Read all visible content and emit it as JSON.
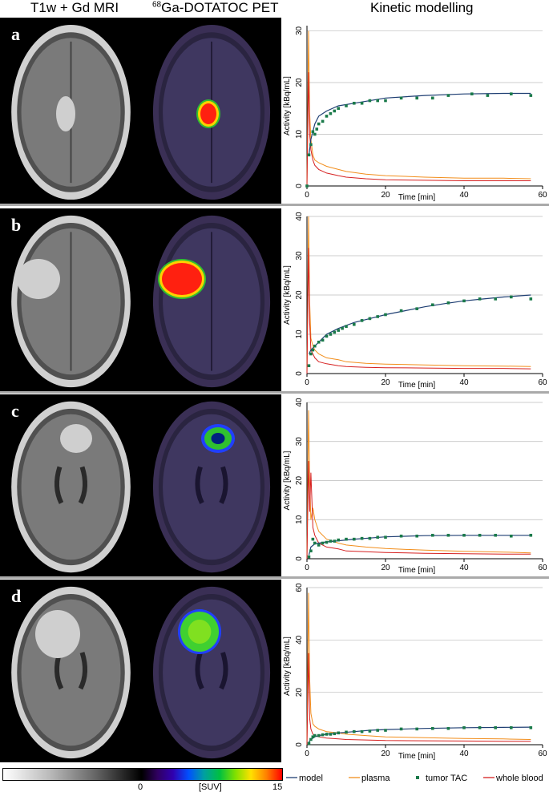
{
  "headers": {
    "col1": "T1w + Gd MRI",
    "col2_sup": "68",
    "col2": "Ga-DOTATOC PET",
    "col3": "Kinetic modelling"
  },
  "colors": {
    "model": "#1f3f73",
    "plasma": "#f28e1c",
    "tumor": "#1a7a4a",
    "blood": "#d62020"
  },
  "legend": {
    "scale_min": "0",
    "scale_unit": "[SUV]",
    "scale_max": "15",
    "model": "model",
    "plasma": "plasma",
    "tumor": "tumor TAC",
    "blood": "whole blood"
  },
  "chart_data": [
    {
      "panel": "a",
      "type": "line",
      "xlabel": "Time [min]",
      "ylabel": "Activity [kBq/mL]",
      "xlim": [
        0,
        60
      ],
      "ylim": [
        0,
        31
      ],
      "xticks": [
        0,
        20,
        40,
        60
      ],
      "yticks": [
        0,
        10,
        20,
        30
      ],
      "series": [
        {
          "name": "model",
          "x": [
            0.5,
            1,
            2,
            3,
            5,
            8,
            12,
            20,
            30,
            40,
            50,
            57
          ],
          "y": [
            6,
            9,
            12,
            13.5,
            14.5,
            15.5,
            16,
            17,
            17.5,
            17.8,
            17.9,
            17.9
          ]
        },
        {
          "name": "plasma",
          "x": [
            0,
            0.4,
            0.7,
            1,
            1.5,
            2,
            3,
            5,
            8,
            10,
            15,
            20,
            30,
            40,
            50,
            57
          ],
          "y": [
            0,
            30,
            14,
            9,
            6,
            5,
            4.5,
            3.8,
            3.2,
            2.8,
            2.3,
            2,
            1.7,
            1.5,
            1.5,
            1.4
          ]
        },
        {
          "name": "tumor TAC",
          "x": [
            0,
            0.5,
            1,
            1.5,
            2,
            2.5,
            3,
            4,
            5,
            6,
            7,
            8,
            10,
            12,
            14,
            16,
            18,
            20,
            24,
            28,
            32,
            36,
            42,
            46,
            52,
            57
          ],
          "y": [
            0,
            6,
            8,
            10.5,
            10,
            11,
            12,
            12.5,
            13.5,
            14,
            14.5,
            15,
            15.5,
            16,
            16,
            16.5,
            16.5,
            16.5,
            17,
            17,
            17,
            17.5,
            17.8,
            17.5,
            17.8,
            17.5
          ]
        },
        {
          "name": "whole blood",
          "x": [
            0,
            0.4,
            0.7,
            1,
            1.5,
            2,
            3,
            5,
            8,
            10,
            15,
            20,
            30,
            40,
            50,
            57
          ],
          "y": [
            0,
            22,
            10,
            7,
            5,
            4,
            3.2,
            2.5,
            2,
            1.7,
            1.4,
            1.2,
            1.1,
            1,
            1,
            1
          ]
        }
      ]
    },
    {
      "panel": "b",
      "type": "line",
      "xlabel": "Time [min]",
      "ylabel": "Activity [kBq/mL]",
      "xlim": [
        0,
        60
      ],
      "ylim": [
        0,
        40
      ],
      "xticks": [
        0,
        20,
        40,
        60
      ],
      "yticks": [
        0,
        10,
        20,
        30,
        40
      ],
      "series": [
        {
          "name": "model",
          "x": [
            0.5,
            1,
            2,
            3,
            5,
            8,
            12,
            16,
            20,
            25,
            30,
            35,
            40,
            45,
            50,
            57
          ],
          "y": [
            5,
            6,
            7,
            8,
            10,
            11.5,
            13,
            14,
            15,
            16,
            17,
            17.8,
            18.5,
            19,
            19.5,
            20
          ]
        },
        {
          "name": "plasma",
          "x": [
            0,
            0.4,
            0.7,
            1,
            1.5,
            2,
            3,
            5,
            8,
            10,
            15,
            20,
            30,
            40,
            50,
            57
          ],
          "y": [
            0,
            40,
            18,
            9,
            7,
            6,
            5,
            4,
            3.5,
            3,
            2.6,
            2.4,
            2.2,
            2,
            1.9,
            1.8
          ]
        },
        {
          "name": "tumor TAC",
          "x": [
            0.5,
            1,
            1.5,
            2,
            3,
            4,
            5,
            6,
            7,
            8,
            9,
            10,
            12,
            14,
            16,
            18,
            20,
            24,
            28,
            32,
            36,
            40,
            44,
            48,
            52,
            57
          ],
          "y": [
            2,
            5,
            6,
            7,
            8,
            8.5,
            9.5,
            10,
            10.5,
            11,
            11.5,
            12,
            12.5,
            13.5,
            14,
            14.5,
            15,
            16,
            16.5,
            17.5,
            18,
            18.5,
            19,
            19,
            19.5,
            19
          ]
        },
        {
          "name": "whole blood",
          "x": [
            0,
            0.4,
            0.7,
            1,
            1.5,
            2,
            3,
            5,
            8,
            10,
            15,
            20,
            30,
            40,
            50,
            57
          ],
          "y": [
            0,
            32,
            13,
            6,
            5,
            4,
            3,
            2.5,
            2,
            1.8,
            1.6,
            1.5,
            1.4,
            1.3,
            1.3,
            1.2
          ]
        }
      ]
    },
    {
      "panel": "c",
      "type": "line",
      "xlabel": "Time [min]",
      "ylabel": "Activity [kBq/mL]",
      "xlim": [
        0,
        60
      ],
      "ylim": [
        0,
        40
      ],
      "xticks": [
        0,
        20,
        40,
        60
      ],
      "yticks": [
        0,
        10,
        20,
        30,
        40
      ],
      "series": [
        {
          "name": "model",
          "x": [
            0.5,
            1,
            2,
            3,
            5,
            8,
            12,
            16,
            20,
            30,
            40,
            50,
            57
          ],
          "y": [
            1,
            3,
            3.8,
            4,
            4.3,
            4.6,
            5,
            5.3,
            5.6,
            5.9,
            6,
            6,
            6
          ]
        },
        {
          "name": "plasma",
          "x": [
            0,
            0.4,
            0.7,
            1,
            1.5,
            2,
            3,
            5,
            8,
            10,
            15,
            20,
            30,
            40,
            50,
            57
          ],
          "y": [
            0,
            38,
            20,
            10,
            13,
            10,
            7,
            5,
            4,
            3.5,
            3,
            2.6,
            2.2,
            1.9,
            1.7,
            1.5
          ]
        },
        {
          "name": "tumor TAC",
          "x": [
            0.5,
            1,
            1.5,
            2,
            3,
            4,
            5,
            6,
            7,
            8,
            10,
            12,
            14,
            16,
            18,
            20,
            24,
            28,
            32,
            36,
            40,
            44,
            48,
            52,
            57
          ],
          "y": [
            0.5,
            2,
            5,
            4,
            3.5,
            4,
            4.2,
            4.5,
            4.5,
            4.8,
            5,
            5,
            5.2,
            5.2,
            5.5,
            5.5,
            5.8,
            5.8,
            6,
            6,
            6,
            6,
            6,
            5.8,
            6
          ]
        },
        {
          "name": "whole blood",
          "x": [
            0,
            0.4,
            0.7,
            1,
            1.5,
            2,
            3,
            5,
            8,
            10,
            15,
            20,
            30,
            40,
            50,
            57
          ],
          "y": [
            0,
            25,
            12,
            22,
            8,
            6,
            4,
            3,
            2.5,
            2,
            1.8,
            1.6,
            1.4,
            1.3,
            1.2,
            1.2
          ]
        }
      ]
    },
    {
      "panel": "d",
      "type": "line",
      "xlabel": "Time [min]",
      "ylabel": "Activity [kBq/mL]",
      "xlim": [
        0,
        60
      ],
      "ylim": [
        0,
        60
      ],
      "xticks": [
        0,
        20,
        40,
        60
      ],
      "yticks": [
        0,
        20,
        40,
        60
      ],
      "series": [
        {
          "name": "model",
          "x": [
            0.5,
            1,
            2,
            3,
            5,
            8,
            12,
            16,
            20,
            30,
            40,
            50,
            57
          ],
          "y": [
            1,
            2,
            3,
            3.5,
            4,
            4.5,
            5,
            5.5,
            5.8,
            6.2,
            6.5,
            6.6,
            6.7
          ]
        },
        {
          "name": "plasma",
          "x": [
            0,
            0.4,
            0.7,
            1,
            1.5,
            2,
            3,
            5,
            8,
            10,
            15,
            20,
            30,
            40,
            50,
            57
          ],
          "y": [
            0,
            58,
            25,
            12,
            8,
            7,
            6,
            5,
            4.5,
            4,
            3.5,
            3,
            2.7,
            2.4,
            2.2,
            2
          ]
        },
        {
          "name": "tumor TAC",
          "x": [
            0.5,
            1,
            1.5,
            2,
            3,
            4,
            5,
            6,
            7,
            8,
            10,
            12,
            14,
            16,
            18,
            20,
            24,
            28,
            32,
            36,
            40,
            44,
            48,
            52,
            57
          ],
          "y": [
            0.5,
            2,
            3,
            3.5,
            3.5,
            3.8,
            4,
            4,
            4.2,
            4.5,
            4.8,
            5,
            5,
            5.2,
            5.5,
            5.5,
            6,
            6,
            6.2,
            6.2,
            6.5,
            6.5,
            6.5,
            6.5,
            6.5
          ]
        },
        {
          "name": "whole blood",
          "x": [
            0,
            0.4,
            0.7,
            1,
            1.5,
            2,
            3,
            5,
            8,
            10,
            15,
            20,
            30,
            40,
            50,
            57
          ],
          "y": [
            0,
            35,
            10,
            6,
            4,
            3.5,
            3,
            2.5,
            2.2,
            2,
            1.8,
            1.6,
            1.5,
            1.4,
            1.3,
            1.3
          ]
        }
      ]
    }
  ]
}
